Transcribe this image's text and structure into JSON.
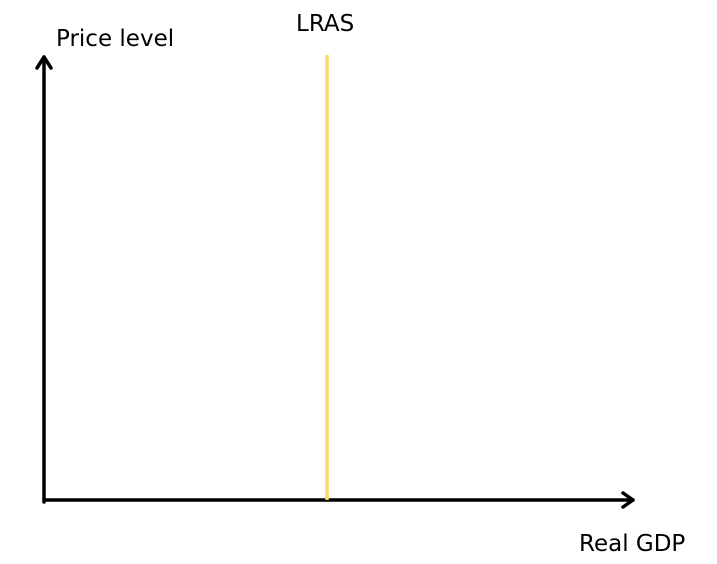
{
  "diagram": {
    "y_axis_label": "Price level",
    "x_axis_label": "Real GDP",
    "curve_label": "LRAS",
    "curve_color": "#FFD966",
    "axis_color": "#000000"
  }
}
